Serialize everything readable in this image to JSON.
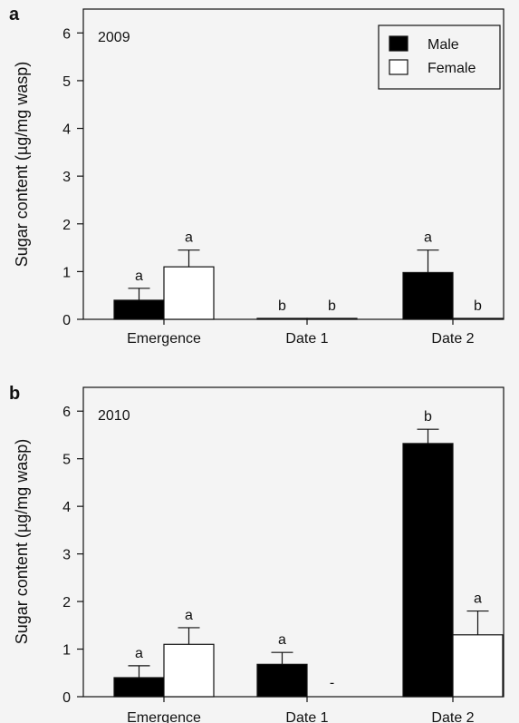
{
  "chart_data": [
    {
      "panel_label": "a",
      "year": "2009",
      "type": "bar",
      "ylabel": "Sugar content (µg/mg wasp)",
      "ylim": [
        0,
        6.5
      ],
      "yticks": [
        0,
        1,
        2,
        3,
        4,
        5,
        6
      ],
      "categories": [
        "Emergence",
        "Date 1",
        "Date 2"
      ],
      "legend": {
        "show": true,
        "position": "top-right"
      },
      "series": [
        {
          "name": "Male",
          "color": "#000000",
          "values": [
            0.4,
            0.02,
            0.98
          ],
          "errors": [
            0.25,
            0.0,
            0.47
          ],
          "letters": [
            "a",
            "b",
            "a"
          ]
        },
        {
          "name": "Female",
          "color": "#ffffff",
          "values": [
            1.1,
            0.02,
            0.02
          ],
          "errors": [
            0.35,
            0.0,
            0.0
          ],
          "letters": [
            "a",
            "b",
            "b"
          ]
        }
      ]
    },
    {
      "panel_label": "b",
      "year": "2010",
      "type": "bar",
      "ylabel": "Sugar content (µg/mg wasp)",
      "ylim": [
        0,
        6.5
      ],
      "yticks": [
        0,
        1,
        2,
        3,
        4,
        5,
        6
      ],
      "categories": [
        "Emergence",
        "Date 1",
        "Date 2"
      ],
      "legend": {
        "show": false
      },
      "series": [
        {
          "name": "Male",
          "color": "#000000",
          "values": [
            0.4,
            0.68,
            5.32
          ],
          "errors": [
            0.25,
            0.25,
            0.3
          ],
          "letters": [
            "a",
            "a",
            "b"
          ]
        },
        {
          "name": "Female",
          "color": "#ffffff",
          "values": [
            1.1,
            null,
            1.3
          ],
          "errors": [
            0.35,
            null,
            0.5
          ],
          "letters": [
            "a",
            "-",
            "a"
          ]
        }
      ]
    }
  ]
}
